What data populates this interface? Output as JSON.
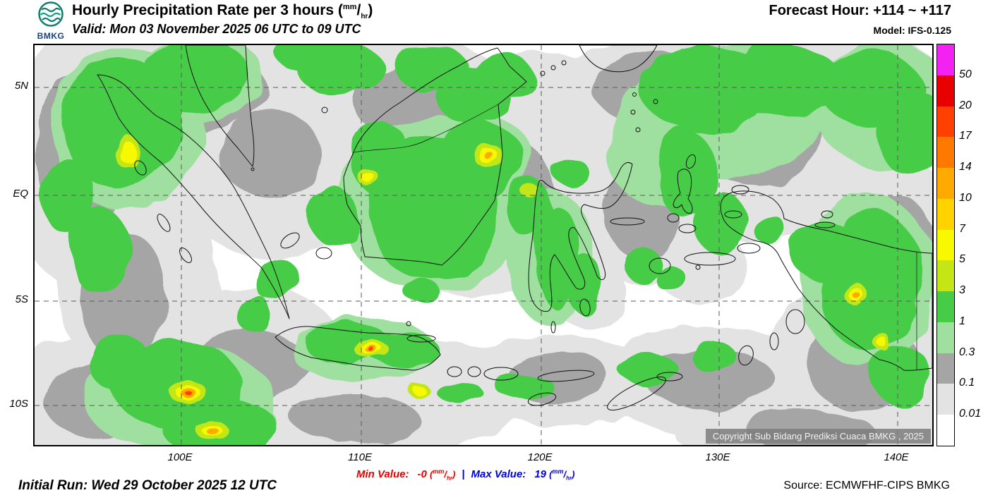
{
  "header": {
    "logo_text": "BMKG",
    "title_prefix": "Hourly Precipitation Rate per 3 hours (",
    "unit_top": "mm",
    "unit_bottom": "hr",
    "title_suffix": ")",
    "valid_line": "Valid: Mon 03 November 2025 06 UTC to 09 UTC",
    "forecast_hour": "Forecast Hour: +114 ~ +117",
    "model": "Model: IFS-0.125"
  },
  "map": {
    "lat_labels": [
      "5N",
      "EQ",
      "5S",
      "10S"
    ],
    "lon_labels": [
      "100E",
      "110E",
      "120E",
      "130E",
      "140E"
    ],
    "copyright": "Copyright Sub Bidang Prediksi Cuaca BMKG , 2025"
  },
  "legend": {
    "unit": "mm/hr",
    "boundary_labels": [
      "50",
      "20",
      "17",
      "14",
      "10",
      "7",
      "5",
      "3",
      "1",
      "0.3",
      "0.1",
      "0.01"
    ],
    "segment_colors": [
      "#f322f3",
      "#e80000",
      "#ff4000",
      "#ff7800",
      "#ffaa00",
      "#ffd200",
      "#f8f800",
      "#c3e614",
      "#46cc46",
      "#9fdf9f",
      "#a5a5a5",
      "#e3e3e3",
      "#ffffff"
    ]
  },
  "footer": {
    "initial_run": "Initial Run: Wed 29 October 2025 12 UTC",
    "min_label": "Min Value:",
    "min_value": "-0",
    "separator": "|",
    "max_label": "Max Value:",
    "max_value": "19",
    "unit_top": "mm",
    "unit_bottom": "hr",
    "source": "Source: ECMWFHF-CIPS BMKG"
  }
}
